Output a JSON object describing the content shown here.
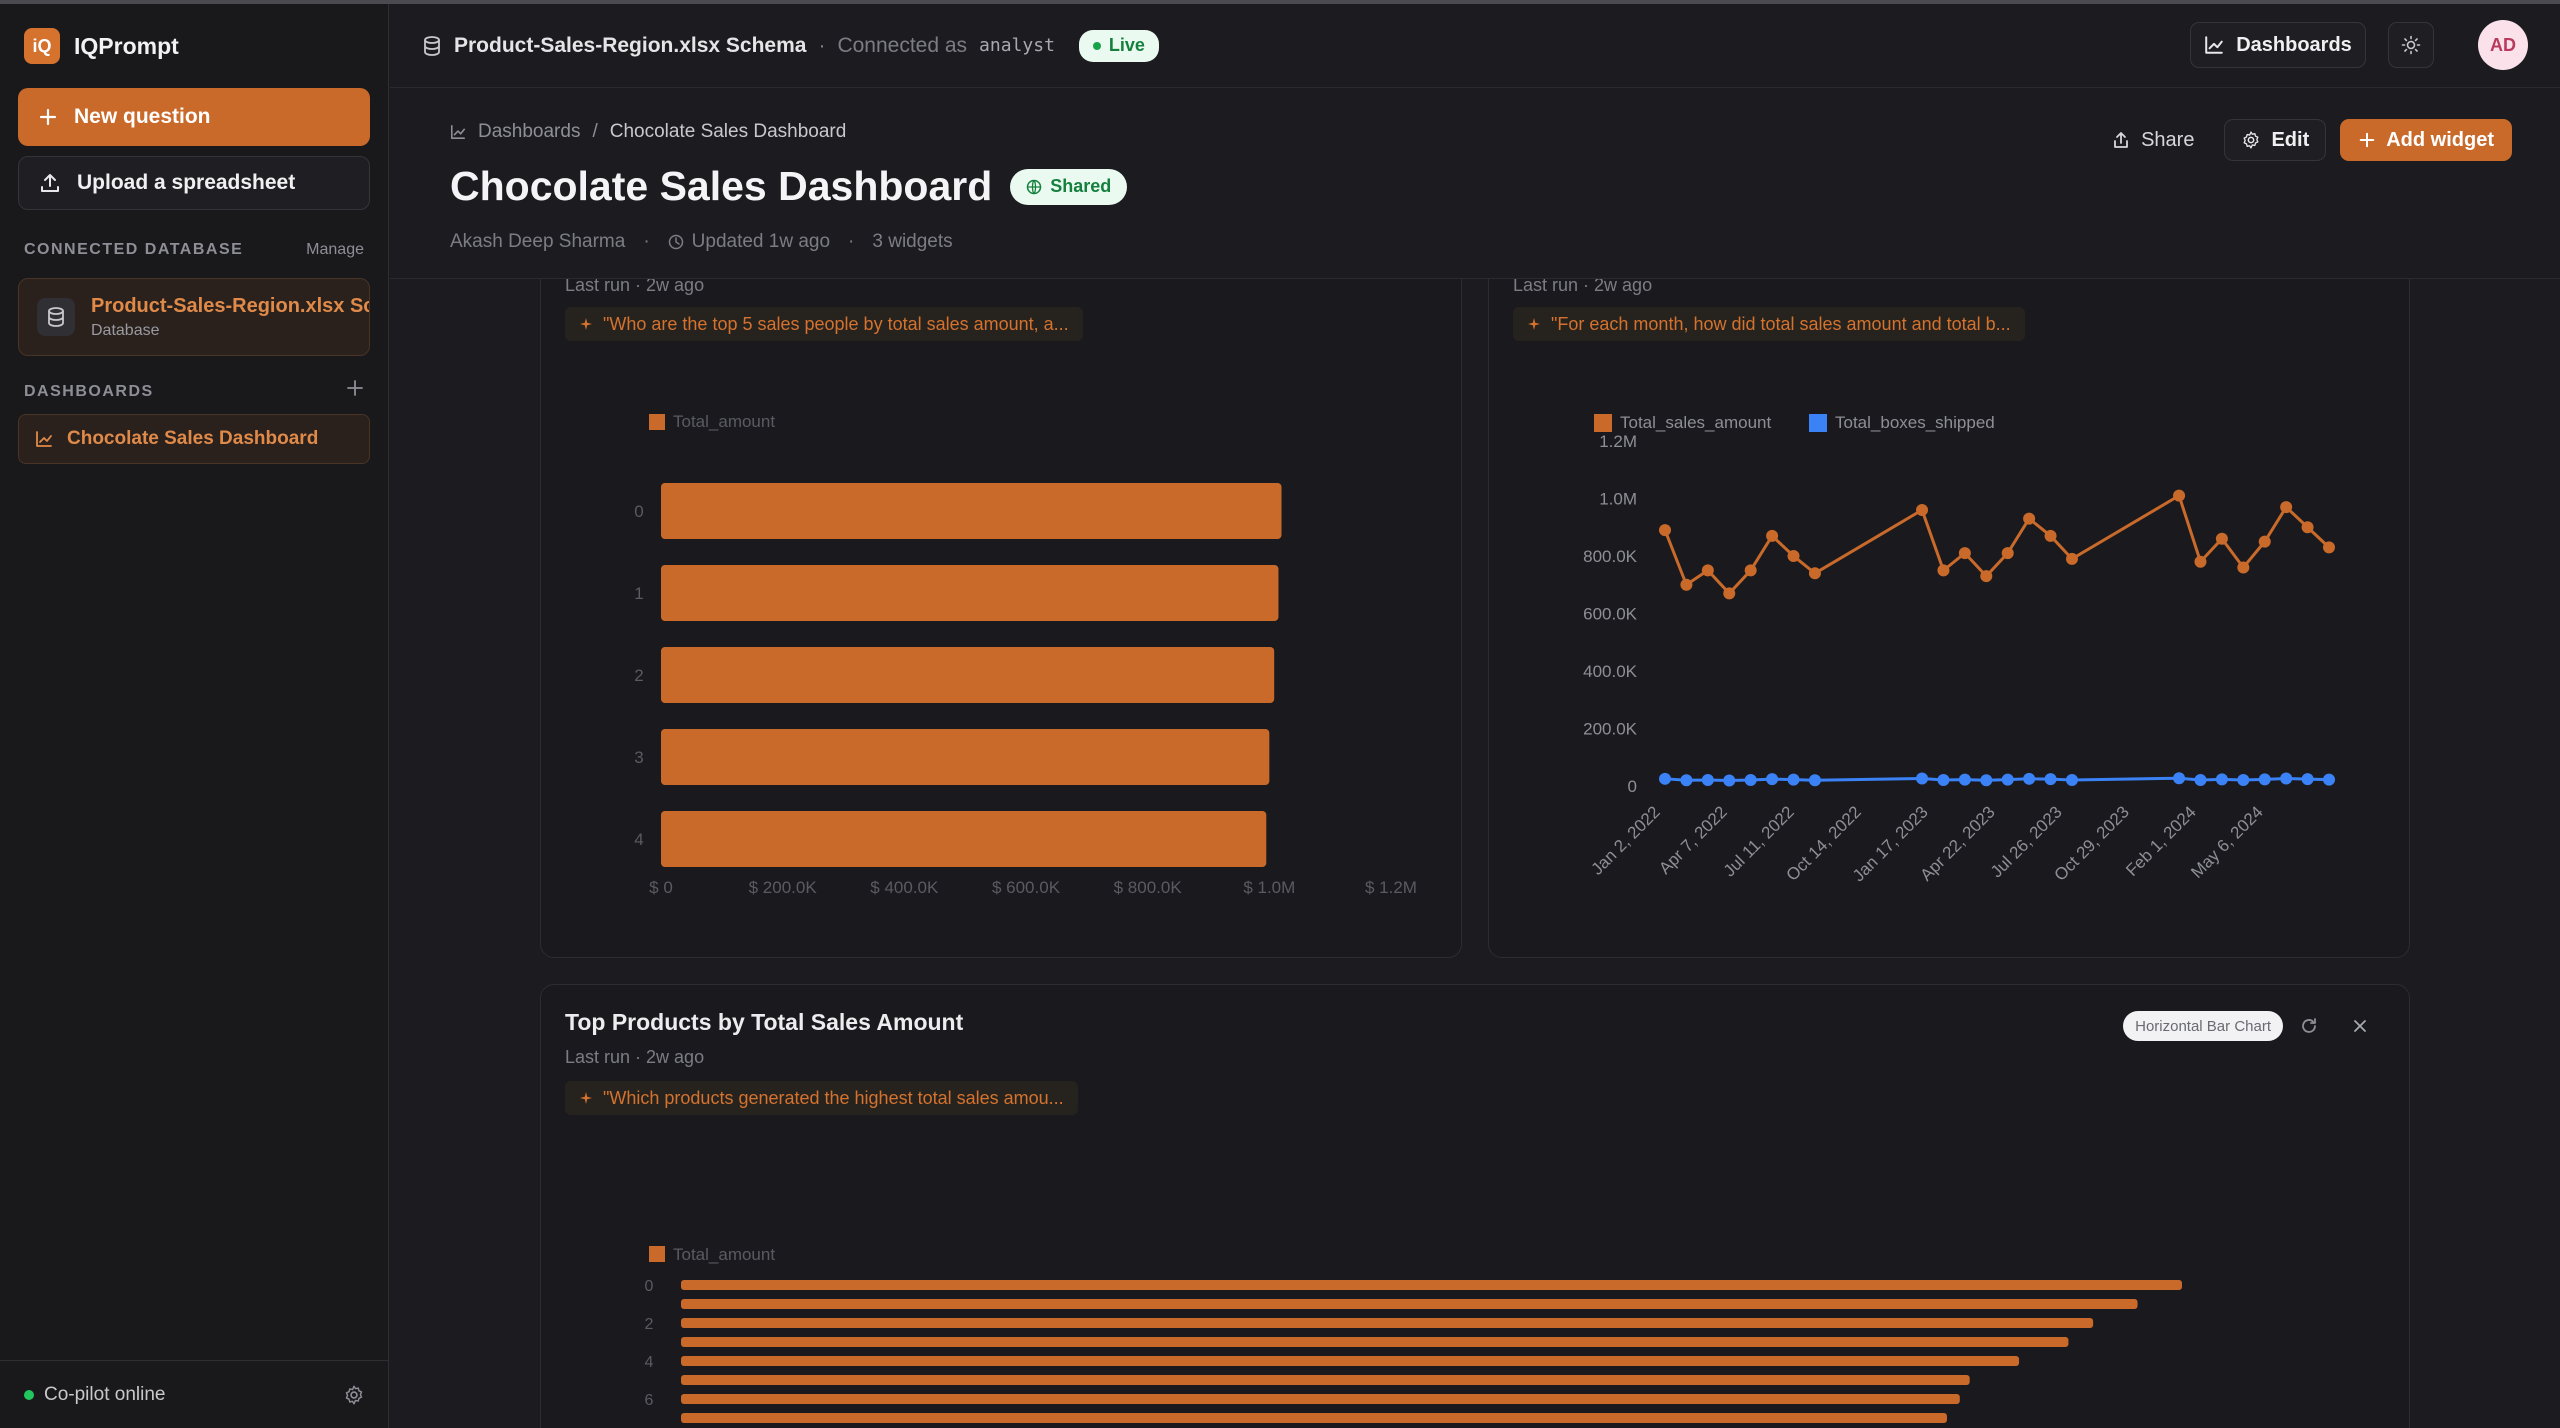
{
  "app": {
    "logo_text": "iQ",
    "name": "IQPrompt"
  },
  "sidebar": {
    "new_question": "New question",
    "upload": "Upload a spreadsheet",
    "connected_label": "CONNECTED DATABASE",
    "manage": "Manage",
    "database": {
      "name": "Product-Sales-Region.xlsx Schema",
      "type": "Database"
    },
    "dashboards_label": "DASHBOARDS",
    "dashboards": [
      {
        "label": "Chocolate Sales Dashboard"
      }
    ],
    "footer_status": "Co-pilot online"
  },
  "topbar": {
    "schema": "Product-Sales-Region.xlsx Schema",
    "separator": "·",
    "connected_as": "Connected as",
    "user": "analyst",
    "live": "Live",
    "dashboards_button": "Dashboards",
    "avatar": "AD"
  },
  "header": {
    "breadcrumb_root": "Dashboards",
    "breadcrumb_sep": "/",
    "breadcrumb_current": "Chocolate Sales Dashboard",
    "title": "Chocolate Sales Dashboard",
    "shared": "Shared",
    "author": "Akash Deep Sharma",
    "updated": "Updated 1w ago",
    "widgets_count": "3 widgets",
    "dot": "·",
    "share": "Share",
    "edit": "Edit",
    "add_widget": "Add widget"
  },
  "widgets": [
    {
      "last_run": "Last run · 2w ago",
      "prompt": "\"Who are the top 5 sales people by total sales amount, a..."
    },
    {
      "last_run": "Last run · 2w ago",
      "prompt": "\"For each month, how did total sales amount and total b..."
    },
    {
      "title": "Top Products by Total Sales Amount",
      "last_run": "Last run · 2w ago",
      "prompt": "\"Which products generated the highest total sales amou...",
      "type_badge": "Horizontal Bar Chart"
    }
  ],
  "colors": {
    "accent": "#c96a2b",
    "series_orange": "#c96a2b",
    "series_blue": "#3b82f6",
    "live_green": "#16a34a"
  },
  "chart_data": [
    {
      "type": "bar",
      "orientation": "horizontal",
      "categories": [
        "0",
        "1",
        "2",
        "3",
        "4"
      ],
      "series": [
        {
          "name": "Total_amount",
          "values": [
            1020000,
            1015000,
            1008000,
            1000000,
            995000
          ]
        }
      ],
      "x_ticks": [
        "$ 0",
        "$ 200.0K",
        "$ 400.0K",
        "$ 600.0K",
        "$ 800.0K",
        "$ 1.0M",
        "$ 1.2M"
      ],
      "xlim": [
        0,
        1200000
      ],
      "legend": "top-left",
      "grid": false
    },
    {
      "type": "line",
      "x_ticks": [
        "Jan 2, 2022",
        "Apr 7, 2022",
        "Jul 11, 2022",
        "Oct 14, 2022",
        "Jan 17, 2023",
        "Apr 22, 2023",
        "Jul 26, 2023",
        "Oct 29, 2023",
        "Feb 1, 2024",
        "May 6, 2024"
      ],
      "y_ticks": [
        "0",
        "200.0K",
        "400.0K",
        "600.0K",
        "800.0K",
        "1.0M",
        "1.2M"
      ],
      "ylim": [
        0,
        1200000
      ],
      "series": [
        {
          "name": "Total_sales_amount",
          "values": [
            890000,
            700000,
            750000,
            670000,
            750000,
            870000,
            800000,
            740000,
            960000,
            750000,
            810000,
            730000,
            810000,
            930000,
            870000,
            790000,
            1010000,
            780000,
            860000,
            760000,
            850000,
            970000,
            900000,
            830000
          ]
        },
        {
          "name": "Total_boxes_shipped",
          "values": [
            25000,
            20000,
            21000,
            19000,
            21000,
            24000,
            22000,
            20000,
            26000,
            21000,
            22000,
            20000,
            22000,
            25000,
            24000,
            21000,
            27000,
            21000,
            23000,
            21000,
            23000,
            26000,
            24000,
            22000
          ]
        }
      ],
      "x_positions": [
        0,
        2,
        4,
        6,
        8,
        10,
        12,
        14,
        24,
        26,
        28,
        30,
        32,
        34,
        36,
        38,
        48,
        50,
        52,
        54,
        56,
        58,
        60,
        62
      ],
      "legend": "top-left",
      "grid": false
    },
    {
      "type": "bar",
      "orientation": "horizontal",
      "categories": [
        "0",
        "1",
        "2",
        "3",
        "4",
        "5",
        "6",
        "7"
      ],
      "y_ticks": [
        "0",
        "2",
        "4",
        "6"
      ],
      "series": [
        {
          "name": "Total_amount",
          "values": [
            1520000,
            1475000,
            1430000,
            1405000,
            1355000,
            1305000,
            1295000,
            1282000
          ]
        }
      ],
      "xlim": [
        0,
        1600000
      ],
      "legend": "top-left",
      "grid": false
    }
  ]
}
